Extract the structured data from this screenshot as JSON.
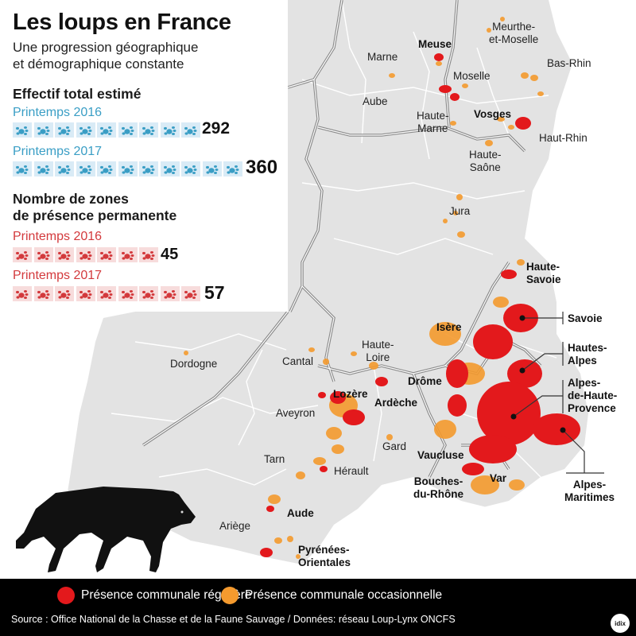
{
  "header": {
    "title": "Les loups en France",
    "subtitle": "Une progression géographique\net démographique constante"
  },
  "population": {
    "title": "Effectif total estimé",
    "rows": [
      {
        "label": "Printemps 2016",
        "icons": 9,
        "value": "292"
      },
      {
        "label": "Printemps 2017",
        "icons": 11,
        "value": "360"
      }
    ],
    "color": "#3a9ec5"
  },
  "zones": {
    "title": "Nombre de zones\nde présence permanente",
    "rows": [
      {
        "label": "Printemps 2016",
        "icons": 7,
        "value": "45"
      },
      {
        "label": "Printemps 2017",
        "icons": 9,
        "value": "57"
      }
    ],
    "color": "#d3393c"
  },
  "map": {
    "colors": {
      "land": "#e3e3e3",
      "sea": "#ffffff",
      "border": "#ffffff",
      "region_border": "#777777",
      "regular": "#e3191c",
      "occasional": "#f49a2e"
    },
    "departments": [
      {
        "name": "Meuse",
        "bold": true
      },
      {
        "name": "Meurthe-\net-Moselle",
        "bold": false
      },
      {
        "name": "Marne",
        "bold": false
      },
      {
        "name": "Moselle",
        "bold": false
      },
      {
        "name": "Bas-Rhin",
        "bold": false
      },
      {
        "name": "Aube",
        "bold": false
      },
      {
        "name": "Haute-\nMarne",
        "bold": false
      },
      {
        "name": "Vosges",
        "bold": true
      },
      {
        "name": "Haut-Rhin",
        "bold": false
      },
      {
        "name": "Haute-\nSaône",
        "bold": false
      },
      {
        "name": "Jura",
        "bold": false
      },
      {
        "name": "Haute-\nSavoie",
        "bold": true
      },
      {
        "name": "Savoie",
        "bold": true
      },
      {
        "name": "Isère",
        "bold": true
      },
      {
        "name": "Hautes-\nAlpes",
        "bold": true
      },
      {
        "name": "Haute-\nLoire",
        "bold": false
      },
      {
        "name": "Dordogne",
        "bold": false
      },
      {
        "name": "Cantal",
        "bold": false
      },
      {
        "name": "Drôme",
        "bold": true
      },
      {
        "name": "Alpes-\nde-Haute-\nProvence",
        "bold": true
      },
      {
        "name": "Lozère",
        "bold": true
      },
      {
        "name": "Ardèche",
        "bold": true
      },
      {
        "name": "Aveyron",
        "bold": false
      },
      {
        "name": "Gard",
        "bold": false
      },
      {
        "name": "Vaucluse",
        "bold": true
      },
      {
        "name": "Tarn",
        "bold": false
      },
      {
        "name": "Hérault",
        "bold": false
      },
      {
        "name": "Bouches-\ndu-Rhône",
        "bold": true
      },
      {
        "name": "Var",
        "bold": true
      },
      {
        "name": "Alpes-\nMaritimes",
        "bold": true
      },
      {
        "name": "Aude",
        "bold": true
      },
      {
        "name": "Ariège",
        "bold": false
      },
      {
        "name": "Pyrénées-\nOrientales",
        "bold": true
      }
    ]
  },
  "legend": {
    "items": [
      {
        "label": "Présence communale régulière",
        "color": "#e3191c"
      },
      {
        "label": "Présence communale occasionnelle",
        "color": "#f49a2e"
      }
    ],
    "source": "Source : Office National de la Chasse et de la Faune Sauvage /  Données: réseau Loup-Lynx ONCFS",
    "logo": "idix"
  }
}
